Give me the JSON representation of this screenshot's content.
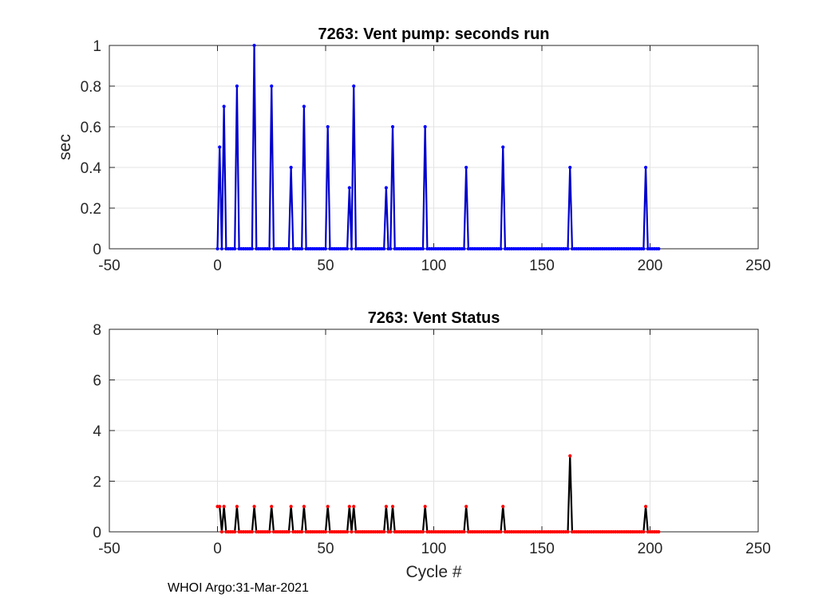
{
  "footer": "WHOI Argo:31-Mar-2021",
  "chart_data": [
    {
      "type": "line",
      "title": "7263: Vent pump: seconds run",
      "xlabel": "",
      "ylabel": "sec",
      "xlim": [
        -50,
        250
      ],
      "ylim": [
        0,
        1
      ],
      "xticks": [
        -50,
        0,
        50,
        100,
        150,
        200,
        250
      ],
      "yticks": [
        0,
        0.2,
        0.4,
        0.6,
        0.8,
        1
      ],
      "ytick_labels": [
        "0",
        "0.2",
        "0.4",
        "0.6",
        "0.8",
        "1"
      ],
      "grid": true,
      "x_range": [
        0,
        204
      ],
      "baseline": 0,
      "line_color": "#0000cc",
      "marker_color": "#0000ff",
      "spikes": [
        {
          "x": 1,
          "y": 0.5
        },
        {
          "x": 3,
          "y": 0.7
        },
        {
          "x": 9,
          "y": 0.8
        },
        {
          "x": 17,
          "y": 1.0
        },
        {
          "x": 25,
          "y": 0.8
        },
        {
          "x": 34,
          "y": 0.4
        },
        {
          "x": 40,
          "y": 0.7
        },
        {
          "x": 51,
          "y": 0.6
        },
        {
          "x": 61,
          "y": 0.3
        },
        {
          "x": 63,
          "y": 0.8
        },
        {
          "x": 78,
          "y": 0.3
        },
        {
          "x": 81,
          "y": 0.6
        },
        {
          "x": 96,
          "y": 0.6
        },
        {
          "x": 115,
          "y": 0.4
        },
        {
          "x": 132,
          "y": 0.5
        },
        {
          "x": 163,
          "y": 0.4
        },
        {
          "x": 198,
          "y": 0.4
        }
      ]
    },
    {
      "type": "line",
      "title": "7263: Vent Status",
      "xlabel": "Cycle #",
      "ylabel": "",
      "xlim": [
        -50,
        250
      ],
      "ylim": [
        0,
        8
      ],
      "xticks": [
        -50,
        0,
        50,
        100,
        150,
        200,
        250
      ],
      "yticks": [
        0,
        2,
        4,
        6,
        8
      ],
      "ytick_labels": [
        "0",
        "2",
        "4",
        "6",
        "8"
      ],
      "grid": true,
      "x_range": [
        0,
        204
      ],
      "baseline": 0,
      "line_color": "#000000",
      "marker_color": "#ff0000",
      "spikes": [
        {
          "x": 0,
          "y": 1
        },
        {
          "x": 1,
          "y": 1
        },
        {
          "x": 3,
          "y": 1
        },
        {
          "x": 9,
          "y": 1
        },
        {
          "x": 17,
          "y": 1
        },
        {
          "x": 25,
          "y": 1
        },
        {
          "x": 34,
          "y": 1
        },
        {
          "x": 40,
          "y": 1
        },
        {
          "x": 51,
          "y": 1
        },
        {
          "x": 61,
          "y": 1
        },
        {
          "x": 63,
          "y": 1
        },
        {
          "x": 78,
          "y": 1
        },
        {
          "x": 81,
          "y": 1
        },
        {
          "x": 96,
          "y": 1
        },
        {
          "x": 115,
          "y": 1
        },
        {
          "x": 132,
          "y": 1
        },
        {
          "x": 163,
          "y": 3
        },
        {
          "x": 198,
          "y": 1
        }
      ]
    }
  ]
}
